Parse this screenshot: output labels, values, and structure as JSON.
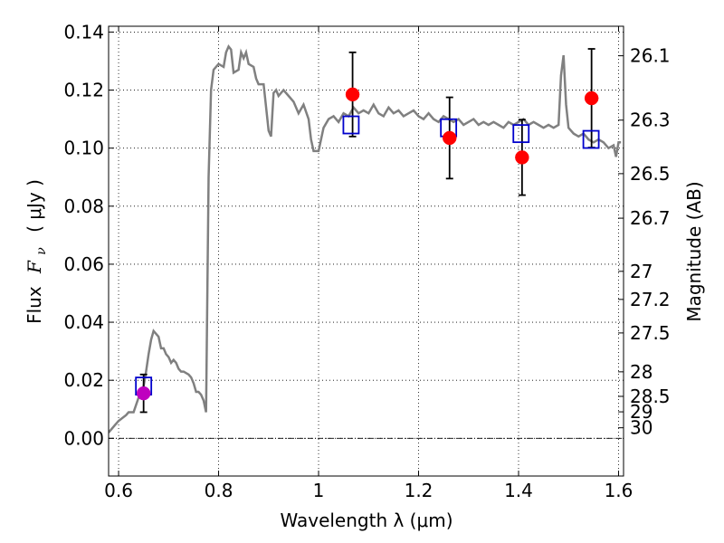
{
  "chart_data": {
    "type": "scatter",
    "title": "",
    "xlabel": "Wavelength  λ (μm)",
    "ylabel": "Flux  F_ν  ( μJy )",
    "ylabel_parts": {
      "pre": "Flux",
      "sym": "F",
      "sub": "ν",
      "post": "( μJy )"
    },
    "y2label": "Magnitude (AB)",
    "xlim": [
      0.58,
      1.61
    ],
    "ylim": [
      -0.013,
      0.142
    ],
    "grid": true,
    "x_ticks": [
      {
        "value": 0.6,
        "label": "0.6"
      },
      {
        "value": 0.8,
        "label": "0.8"
      },
      {
        "value": 1.0,
        "label": "1"
      },
      {
        "value": 1.2,
        "label": "1.2"
      },
      {
        "value": 1.4,
        "label": "1.4"
      },
      {
        "value": 1.6,
        "label": "1.6"
      }
    ],
    "y_ticks": [
      {
        "value": 0.0,
        "label": "0.00"
      },
      {
        "value": 0.02,
        "label": "0.02"
      },
      {
        "value": 0.04,
        "label": "0.04"
      },
      {
        "value": 0.06,
        "label": "0.06"
      },
      {
        "value": 0.08,
        "label": "0.08"
      },
      {
        "value": 0.1,
        "label": "0.10"
      },
      {
        "value": 0.12,
        "label": "0.12"
      },
      {
        "value": 0.14,
        "label": "0.14"
      }
    ],
    "mag_ticks": [
      {
        "mag": 26.1,
        "label": "26.1"
      },
      {
        "mag": 26.3,
        "label": "26.3"
      },
      {
        "mag": 26.5,
        "label": "26.5"
      },
      {
        "mag": 26.7,
        "label": "26.7"
      },
      {
        "mag": 27.0,
        "label": "27"
      },
      {
        "mag": 27.2,
        "label": "27.2"
      },
      {
        "mag": 27.5,
        "label": "27.5"
      },
      {
        "mag": 28.0,
        "label": "28"
      },
      {
        "mag": 28.5,
        "label": "28.5"
      },
      {
        "mag": 29.0,
        "label": "29"
      },
      {
        "mag": 30.0,
        "label": "30"
      }
    ],
    "colors": {
      "model": "#808080",
      "observed": "#ff0000",
      "upper_limit": "#bf00bf",
      "model_band": "#0000cc",
      "errorbar": "#000000",
      "zero_line": "#000000"
    },
    "series": [
      {
        "type": "line",
        "points": [
          [
            0.58,
            0.002
          ],
          [
            0.6,
            0.006
          ],
          [
            0.615,
            0.008
          ],
          [
            0.62,
            0.009
          ],
          [
            0.63,
            0.009
          ],
          [
            0.64,
            0.014
          ],
          [
            0.65,
            0.018
          ],
          [
            0.655,
            0.023
          ],
          [
            0.66,
            0.029
          ],
          [
            0.665,
            0.034
          ],
          [
            0.67,
            0.037
          ],
          [
            0.68,
            0.035
          ],
          [
            0.685,
            0.031
          ],
          [
            0.69,
            0.031
          ],
          [
            0.695,
            0.029
          ],
          [
            0.7,
            0.028
          ],
          [
            0.705,
            0.026
          ],
          [
            0.71,
            0.027
          ],
          [
            0.715,
            0.026
          ],
          [
            0.72,
            0.024
          ],
          [
            0.725,
            0.023
          ],
          [
            0.73,
            0.023
          ],
          [
            0.74,
            0.022
          ],
          [
            0.745,
            0.021
          ],
          [
            0.75,
            0.019
          ],
          [
            0.755,
            0.016
          ],
          [
            0.76,
            0.016
          ],
          [
            0.765,
            0.015
          ],
          [
            0.77,
            0.013
          ],
          [
            0.775,
            0.009
          ],
          [
            0.78,
            0.09
          ],
          [
            0.785,
            0.12
          ],
          [
            0.79,
            0.127
          ],
          [
            0.8,
            0.129
          ],
          [
            0.81,
            0.128
          ],
          [
            0.815,
            0.133
          ],
          [
            0.82,
            0.135
          ],
          [
            0.825,
            0.134
          ],
          [
            0.83,
            0.126
          ],
          [
            0.84,
            0.127
          ],
          [
            0.845,
            0.133
          ],
          [
            0.85,
            0.131
          ],
          [
            0.855,
            0.133
          ],
          [
            0.86,
            0.129
          ],
          [
            0.87,
            0.128
          ],
          [
            0.875,
            0.124
          ],
          [
            0.88,
            0.122
          ],
          [
            0.89,
            0.122
          ],
          [
            0.9,
            0.106
          ],
          [
            0.905,
            0.104
          ],
          [
            0.91,
            0.119
          ],
          [
            0.915,
            0.12
          ],
          [
            0.92,
            0.118
          ],
          [
            0.93,
            0.12
          ],
          [
            0.94,
            0.118
          ],
          [
            0.95,
            0.116
          ],
          [
            0.96,
            0.112
          ],
          [
            0.97,
            0.115
          ],
          [
            0.98,
            0.11
          ],
          [
            0.985,
            0.103
          ],
          [
            0.99,
            0.099
          ],
          [
            1.0,
            0.099
          ],
          [
            1.01,
            0.107
          ],
          [
            1.02,
            0.11
          ],
          [
            1.03,
            0.111
          ],
          [
            1.04,
            0.109
          ],
          [
            1.05,
            0.112
          ],
          [
            1.06,
            0.111
          ],
          [
            1.07,
            0.114
          ],
          [
            1.08,
            0.112
          ],
          [
            1.09,
            0.113
          ],
          [
            1.1,
            0.112
          ],
          [
            1.11,
            0.115
          ],
          [
            1.12,
            0.112
          ],
          [
            1.13,
            0.111
          ],
          [
            1.14,
            0.114
          ],
          [
            1.15,
            0.112
          ],
          [
            1.16,
            0.113
          ],
          [
            1.17,
            0.111
          ],
          [
            1.18,
            0.112
          ],
          [
            1.19,
            0.113
          ],
          [
            1.2,
            0.111
          ],
          [
            1.21,
            0.11
          ],
          [
            1.22,
            0.112
          ],
          [
            1.23,
            0.11
          ],
          [
            1.24,
            0.109
          ],
          [
            1.25,
            0.111
          ],
          [
            1.26,
            0.11
          ],
          [
            1.27,
            0.109
          ],
          [
            1.28,
            0.11
          ],
          [
            1.29,
            0.108
          ],
          [
            1.3,
            0.109
          ],
          [
            1.31,
            0.11
          ],
          [
            1.32,
            0.108
          ],
          [
            1.33,
            0.109
          ],
          [
            1.34,
            0.108
          ],
          [
            1.35,
            0.109
          ],
          [
            1.36,
            0.108
          ],
          [
            1.37,
            0.107
          ],
          [
            1.38,
            0.109
          ],
          [
            1.39,
            0.108
          ],
          [
            1.4,
            0.109
          ],
          [
            1.41,
            0.11
          ],
          [
            1.42,
            0.108
          ],
          [
            1.43,
            0.109
          ],
          [
            1.44,
            0.108
          ],
          [
            1.45,
            0.107
          ],
          [
            1.46,
            0.108
          ],
          [
            1.47,
            0.107
          ],
          [
            1.48,
            0.108
          ],
          [
            1.485,
            0.125
          ],
          [
            1.49,
            0.132
          ],
          [
            1.495,
            0.115
          ],
          [
            1.5,
            0.107
          ],
          [
            1.51,
            0.105
          ],
          [
            1.52,
            0.104
          ],
          [
            1.53,
            0.105
          ],
          [
            1.54,
            0.103
          ],
          [
            1.55,
            0.102
          ],
          [
            1.56,
            0.103
          ],
          [
            1.57,
            0.102
          ],
          [
            1.58,
            0.1
          ],
          [
            1.59,
            0.101
          ],
          [
            1.595,
            0.097
          ],
          [
            1.6,
            0.102
          ],
          [
            1.605,
            0.102
          ]
        ]
      },
      {
        "type": "model_band",
        "marker": "square",
        "points": [
          [
            0.65,
            0.018
          ],
          [
            1.065,
            0.108
          ],
          [
            1.26,
            0.107
          ],
          [
            1.405,
            0.105
          ],
          [
            1.545,
            0.103
          ]
        ]
      },
      {
        "type": "observed",
        "marker": "circle",
        "points": [
          {
            "x": 1.068,
            "y": 0.1185,
            "err_lo": 0.0145,
            "err_hi": 0.0145
          },
          {
            "x": 1.262,
            "y": 0.1035,
            "err_lo": 0.014,
            "err_hi": 0.014
          },
          {
            "x": 1.407,
            "y": 0.0968,
            "err_lo": 0.013,
            "err_hi": 0.013
          },
          {
            "x": 1.546,
            "y": 0.1172,
            "err_lo": 0.017,
            "err_hi": 0.017
          }
        ]
      },
      {
        "type": "upper_limit",
        "marker": "circle",
        "points": [
          {
            "x": 0.65,
            "y": 0.0155,
            "err_lo": 0.0065,
            "err_hi": 0.0065
          }
        ]
      }
    ]
  }
}
